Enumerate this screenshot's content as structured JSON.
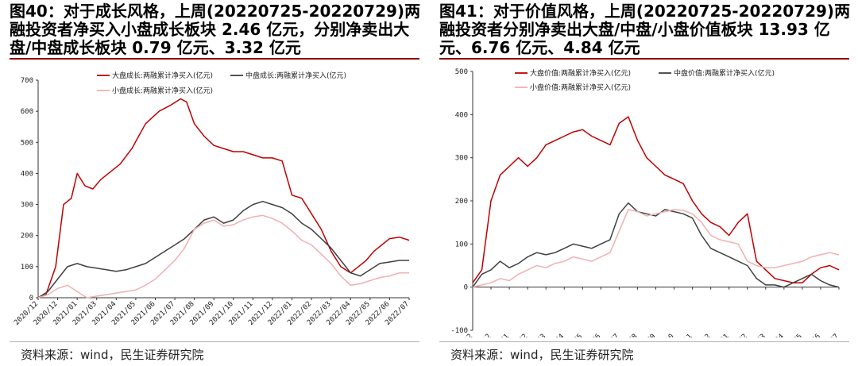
{
  "panels": [
    {
      "title": "图40：对于成长风格，上周(20220725-20220729)两融投资者净买入小盘成长板块  2.46  亿元，分别净卖出大盘/中盘成长板块 0.79 亿元、3.32 亿元",
      "source": "资料来源：wind，民生证券研究院"
    },
    {
      "title": "图41：对于价值风格，上周(20220725-20220729)两融投资者分别净卖出大盘/中盘/小盘价值板块 13.93 亿元、6.76 亿元、4.84 亿元",
      "source": "资料来源：wind，民生证券研究院"
    }
  ],
  "chart_data": [
    {
      "type": "line",
      "ylim": [
        0,
        700
      ],
      "yticks": [
        0,
        100,
        200,
        300,
        400,
        500,
        600,
        700
      ],
      "x_tick_labels": [
        "2020/12",
        "2020/12",
        "2021/01",
        "2021/03",
        "2021/04",
        "2021/05",
        "2021/06",
        "2021/07",
        "2021/08",
        "2021/09",
        "2021/10",
        "2021/11",
        "2021/12",
        "2022/01",
        "2022/02",
        "2022/03",
        "2022/04",
        "2022/05",
        "2022/06",
        "2022/07"
      ],
      "x_index_range": [
        0,
        19
      ],
      "series": [
        {
          "name": "大盘成长:两融累计净买入(亿元)",
          "color": "#c00000",
          "x": [
            0,
            0.4,
            0.9,
            1.3,
            1.7,
            2.0,
            2.4,
            2.8,
            3.2,
            3.6,
            4.2,
            4.8,
            5.5,
            6.2,
            6.8,
            7.3,
            7.6,
            8.0,
            8.5,
            9.0,
            9.5,
            10.0,
            10.5,
            11.0,
            11.5,
            12.0,
            12.5,
            13.0,
            13.5,
            14.0,
            14.5,
            15.0,
            15.5,
            16.0,
            16.4,
            16.8,
            17.2,
            17.6,
            18.0,
            18.5,
            19.0
          ],
          "values": [
            0,
            10,
            100,
            300,
            320,
            400,
            360,
            350,
            380,
            400,
            430,
            480,
            560,
            600,
            620,
            640,
            630,
            560,
            520,
            490,
            480,
            470,
            470,
            460,
            450,
            450,
            440,
            330,
            320,
            270,
            220,
            150,
            100,
            80,
            100,
            120,
            150,
            170,
            190,
            195,
            185
          ]
        },
        {
          "name": "中盘成长:两融累计净买入(亿元)",
          "color": "#404040",
          "x": [
            0,
            0.5,
            1.0,
            1.5,
            2.0,
            2.5,
            3.0,
            3.5,
            4.0,
            4.5,
            5.0,
            5.5,
            6.0,
            6.5,
            7.0,
            7.5,
            8.0,
            8.5,
            9.0,
            9.5,
            10.0,
            10.5,
            11.0,
            11.5,
            12.0,
            12.5,
            13.0,
            13.5,
            14.0,
            14.5,
            15.0,
            15.5,
            16.0,
            16.5,
            17.0,
            17.5,
            18.0,
            18.5,
            19.0
          ],
          "values": [
            0,
            20,
            60,
            100,
            110,
            100,
            95,
            90,
            85,
            90,
            100,
            110,
            130,
            150,
            170,
            190,
            220,
            250,
            260,
            240,
            250,
            280,
            300,
            310,
            300,
            290,
            270,
            240,
            220,
            190,
            160,
            120,
            80,
            70,
            90,
            110,
            115,
            120,
            120
          ]
        },
        {
          "name": "小盘成长:两融累计净买入(亿元)",
          "color": "#f0b0b0",
          "x": [
            0,
            0.5,
            1.0,
            1.5,
            2.0,
            2.5,
            3.0,
            3.5,
            4.0,
            4.5,
            5.0,
            5.5,
            6.0,
            6.5,
            7.0,
            7.5,
            8.0,
            8.5,
            9.0,
            9.5,
            10.0,
            10.5,
            11.0,
            11.5,
            12.0,
            12.5,
            13.0,
            13.5,
            14.0,
            14.5,
            15.0,
            15.5,
            16.0,
            16.5,
            17.0,
            17.5,
            18.0,
            18.5,
            19.0
          ],
          "values": [
            0,
            10,
            30,
            40,
            20,
            0,
            5,
            10,
            15,
            20,
            25,
            40,
            60,
            90,
            120,
            160,
            220,
            240,
            250,
            230,
            235,
            250,
            260,
            265,
            255,
            240,
            215,
            185,
            170,
            140,
            110,
            70,
            40,
            45,
            55,
            65,
            70,
            80,
            80
          ]
        }
      ]
    },
    {
      "type": "line",
      "ylim": [
        -100,
        500
      ],
      "yticks": [
        -100,
        0,
        100,
        200,
        300,
        400,
        500
      ],
      "x_tick_labels": [
        "2020/12",
        "2020/12",
        "2021/01",
        "2021/02",
        "2021/03",
        "2021/04",
        "2021/05",
        "2021/06",
        "2021/07",
        "2021/08",
        "2021/09",
        "2021/10",
        "2021/11",
        "2021/12",
        "2022/01",
        "2022/02",
        "2022/03",
        "2022/04",
        "2022/05",
        "2022/06",
        "2022/07"
      ],
      "x_index_range": [
        0,
        20
      ],
      "series": [
        {
          "name": "大盘价值:两融累计净买入(亿元)",
          "color": "#c00000",
          "x": [
            0,
            0.5,
            1.0,
            1.5,
            2.0,
            2.5,
            3.0,
            3.5,
            4.0,
            4.5,
            5.0,
            5.5,
            6.0,
            6.5,
            7.0,
            7.5,
            8.0,
            8.5,
            9.0,
            9.5,
            10.0,
            10.5,
            11.0,
            11.5,
            12.0,
            12.5,
            13.0,
            13.5,
            14.0,
            14.5,
            15.0,
            15.5,
            16.0,
            16.5,
            17.0,
            17.5,
            18.0,
            18.5,
            19.0,
            19.5,
            20.0
          ],
          "values": [
            10,
            40,
            200,
            260,
            280,
            300,
            280,
            300,
            330,
            340,
            350,
            360,
            365,
            350,
            340,
            330,
            380,
            395,
            340,
            300,
            280,
            260,
            250,
            240,
            200,
            170,
            150,
            140,
            120,
            150,
            170,
            60,
            40,
            20,
            15,
            10,
            10,
            30,
            45,
            50,
            40
          ]
        },
        {
          "name": "中盘价值:两融累计净买入(亿元)",
          "color": "#404040",
          "x": [
            0,
            0.5,
            1.0,
            1.5,
            2.0,
            2.5,
            3.0,
            3.5,
            4.0,
            4.5,
            5.0,
            5.5,
            6.0,
            6.5,
            7.0,
            7.5,
            8.0,
            8.5,
            9.0,
            9.5,
            10.0,
            10.5,
            11.0,
            11.5,
            12.0,
            12.5,
            13.0,
            13.5,
            14.0,
            14.5,
            15.0,
            15.5,
            16.0,
            16.5,
            17.0,
            17.5,
            18.0,
            18.5,
            19.0,
            19.5,
            20.0
          ],
          "values": [
            0,
            30,
            40,
            60,
            45,
            55,
            70,
            80,
            75,
            80,
            90,
            100,
            95,
            90,
            100,
            110,
            170,
            195,
            175,
            170,
            165,
            180,
            175,
            170,
            160,
            120,
            90,
            80,
            70,
            60,
            50,
            20,
            5,
            5,
            0,
            10,
            20,
            30,
            15,
            5,
            0
          ]
        },
        {
          "name": "小盘价值:两融累计净买入(亿元)",
          "color": "#f0b0b0",
          "x": [
            0,
            0.5,
            1.0,
            1.5,
            2.0,
            2.5,
            3.0,
            3.5,
            4.0,
            4.5,
            5.0,
            5.5,
            6.0,
            6.5,
            7.0,
            7.5,
            8.0,
            8.5,
            9.0,
            9.5,
            10.0,
            10.5,
            11.0,
            11.5,
            12.0,
            12.5,
            13.0,
            13.5,
            14.0,
            14.5,
            15.0,
            15.5,
            16.0,
            16.5,
            17.0,
            17.5,
            18.0,
            18.5,
            19.0,
            19.5,
            20.0
          ],
          "values": [
            0,
            5,
            10,
            20,
            15,
            30,
            40,
            50,
            45,
            55,
            60,
            70,
            65,
            60,
            70,
            80,
            130,
            180,
            175,
            165,
            170,
            175,
            180,
            178,
            170,
            150,
            120,
            110,
            105,
            100,
            60,
            50,
            45,
            45,
            50,
            55,
            60,
            70,
            75,
            80,
            75
          ]
        }
      ]
    }
  ]
}
